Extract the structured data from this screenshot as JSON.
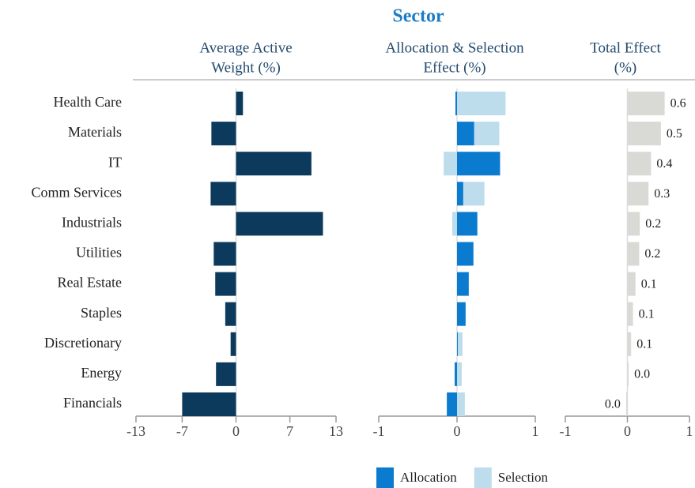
{
  "title": "Sector",
  "chart_data": [
    {
      "type": "bar",
      "orientation": "horizontal",
      "title": [
        "Average Active",
        "Weight (%)"
      ],
      "categories": [
        "Health Care",
        "Materials",
        "IT",
        "Comm Services",
        "Industrials",
        "Utilities",
        "Real Estate",
        "Staples",
        "Discretionary",
        "Energy",
        "Financials"
      ],
      "values": [
        0.9,
        -3.2,
        9.8,
        -3.3,
        11.3,
        -2.9,
        -2.7,
        -1.4,
        -0.7,
        -2.6,
        -7.0
      ],
      "color": "#0c3a5d",
      "xlim": [
        -13,
        13
      ],
      "xticks": [
        -13,
        -7,
        0,
        7,
        13
      ]
    },
    {
      "type": "stacked_bar",
      "orientation": "horizontal",
      "title": [
        "Allocation & Selection",
        "Effect (%)"
      ],
      "series": [
        {
          "name": "Allocation",
          "color": "#0b7bcf",
          "values": [
            -0.02,
            0.22,
            0.55,
            0.08,
            0.26,
            0.21,
            0.15,
            0.11,
            0.01,
            -0.03,
            -0.13
          ]
        },
        {
          "name": "Selection",
          "color": "#bddcec",
          "values": [
            0.62,
            0.32,
            -0.17,
            0.27,
            -0.06,
            0.0,
            0.0,
            0.0,
            0.06,
            0.06,
            0.1
          ]
        }
      ],
      "xlim": [
        -1,
        1
      ],
      "xticks": [
        -1,
        0,
        1
      ],
      "legend": "bottom"
    },
    {
      "type": "bar",
      "orientation": "horizontal",
      "title": [
        "Total Effect",
        "(%)"
      ],
      "values": [
        0.6,
        0.54,
        0.38,
        0.34,
        0.2,
        0.19,
        0.13,
        0.09,
        0.06,
        0.02,
        -0.02
      ],
      "value_labels": [
        "0.6",
        "0.5",
        "0.4",
        "0.3",
        "0.2",
        "0.2",
        "0.1",
        "0.1",
        "0.1",
        "0.0",
        "0.0"
      ],
      "color": "#d9d9d6",
      "xlim": [
        -1,
        1
      ],
      "xticks": [
        -1,
        0,
        1
      ]
    }
  ]
}
